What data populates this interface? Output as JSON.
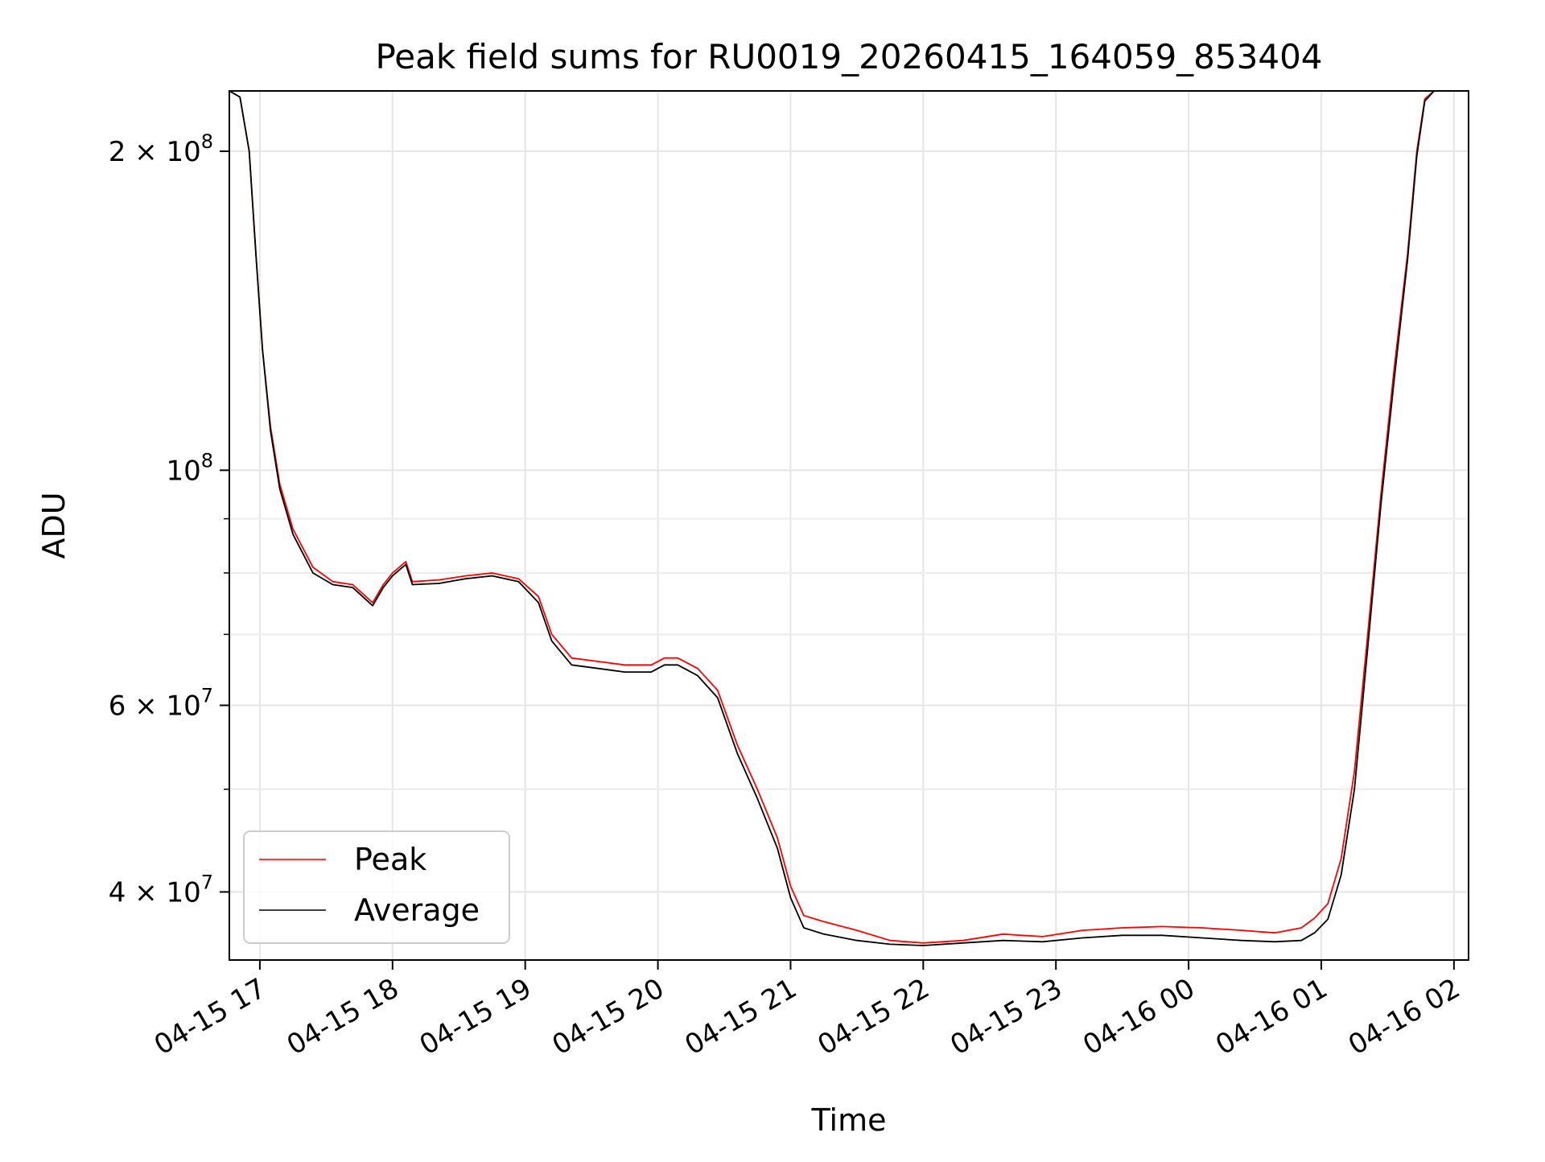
{
  "chart_data": {
    "type": "line",
    "title": "Peak field sums for RU0019_20260415_164059_853404",
    "xlabel": "Time",
    "ylabel": "ADU",
    "yscale": "log",
    "xlim": [
      16.77,
      26.11
    ],
    "ylim": [
      34500000,
      228000000
    ],
    "grid": true,
    "legend": "lower-left",
    "x_ticks": [
      {
        "value": 17,
        "label": "04-15 17"
      },
      {
        "value": 18,
        "label": "04-15 18"
      },
      {
        "value": 19,
        "label": "04-15 19"
      },
      {
        "value": 20,
        "label": "04-15 20"
      },
      {
        "value": 21,
        "label": "04-15 21"
      },
      {
        "value": 22,
        "label": "04-15 22"
      },
      {
        "value": 23,
        "label": "04-15 23"
      },
      {
        "value": 24,
        "label": "04-16 00"
      },
      {
        "value": 25,
        "label": "04-16 01"
      },
      {
        "value": 26,
        "label": "04-16 02"
      }
    ],
    "y_major_ticks": [
      {
        "value": 40000000,
        "base": "4 × 10",
        "exp": "7"
      },
      {
        "value": 60000000,
        "base": "6 × 10",
        "exp": "7"
      },
      {
        "value": 100000000,
        "base": "10",
        "exp": "8"
      },
      {
        "value": 200000000,
        "base": "2 × 10",
        "exp": "8"
      }
    ],
    "y_minor_ticks": [
      50000000,
      70000000,
      80000000,
      90000000
    ],
    "series": [
      {
        "name": "Peak",
        "color": "#ff0000",
        "x": [
          16.77,
          16.85,
          16.92,
          16.97,
          17.02,
          17.08,
          17.15,
          17.25,
          17.4,
          17.55,
          17.7,
          17.85,
          17.93,
          18.0,
          18.1,
          18.15,
          18.35,
          18.55,
          18.75,
          18.95,
          19.1,
          19.2,
          19.35,
          19.55,
          19.75,
          19.95,
          20.05,
          20.15,
          20.3,
          20.45,
          20.6,
          20.75,
          20.9,
          21.0,
          21.1,
          21.25,
          21.5,
          21.75,
          22.0,
          22.3,
          22.6,
          22.9,
          23.2,
          23.5,
          23.8,
          24.1,
          24.4,
          24.65,
          24.85,
          24.95,
          25.05,
          25.15,
          25.25,
          25.35,
          25.45,
          25.55,
          25.65,
          25.72,
          25.78,
          25.85,
          26.11
        ],
        "values": [
          228000000,
          225000000,
          200000000,
          160000000,
          130000000,
          110000000,
          97000000,
          88000000,
          81000000,
          78500000,
          78000000,
          75000000,
          78000000,
          80000000,
          82000000,
          78500000,
          78800000,
          79500000,
          80000000,
          79000000,
          76000000,
          70000000,
          66500000,
          66000000,
          65500000,
          65500000,
          66500000,
          66500000,
          65000000,
          62000000,
          55000000,
          50000000,
          45000000,
          40500000,
          38000000,
          37500000,
          36800000,
          36000000,
          35800000,
          36000000,
          36500000,
          36300000,
          36800000,
          37000000,
          37100000,
          37000000,
          36800000,
          36600000,
          37000000,
          37800000,
          39000000,
          43000000,
          52000000,
          70000000,
          95000000,
          125000000,
          160000000,
          200000000,
          224000000,
          228000000,
          228000000
        ]
      },
      {
        "name": "Average",
        "color": "#000000",
        "x": [
          16.77,
          16.85,
          16.92,
          16.97,
          17.02,
          17.08,
          17.15,
          17.25,
          17.4,
          17.55,
          17.7,
          17.85,
          17.93,
          18.0,
          18.1,
          18.15,
          18.35,
          18.55,
          18.75,
          18.95,
          19.1,
          19.2,
          19.35,
          19.55,
          19.75,
          19.95,
          20.05,
          20.15,
          20.3,
          20.45,
          20.6,
          20.75,
          20.9,
          21.0,
          21.1,
          21.25,
          21.5,
          21.75,
          22.0,
          22.3,
          22.6,
          22.9,
          23.2,
          23.5,
          23.8,
          24.1,
          24.4,
          24.65,
          24.85,
          24.95,
          25.05,
          25.15,
          25.25,
          25.35,
          25.45,
          25.55,
          25.65,
          25.72,
          25.78,
          25.85,
          26.11
        ],
        "values": [
          228000000,
          225000000,
          200000000,
          160000000,
          130000000,
          109000000,
          96000000,
          87000000,
          80000000,
          78000000,
          77500000,
          74500000,
          77500000,
          79500000,
          81500000,
          78000000,
          78200000,
          79000000,
          79500000,
          78500000,
          75000000,
          69000000,
          65500000,
          65000000,
          64500000,
          64500000,
          65500000,
          65500000,
          64000000,
          61000000,
          54000000,
          49000000,
          44000000,
          39500000,
          37000000,
          36500000,
          36000000,
          35700000,
          35600000,
          35800000,
          36000000,
          35900000,
          36200000,
          36400000,
          36400000,
          36200000,
          36000000,
          35900000,
          36000000,
          36600000,
          37700000,
          41500000,
          50000000,
          68000000,
          93000000,
          122000000,
          158000000,
          198000000,
          223000000,
          228000000,
          228000000
        ]
      }
    ]
  }
}
